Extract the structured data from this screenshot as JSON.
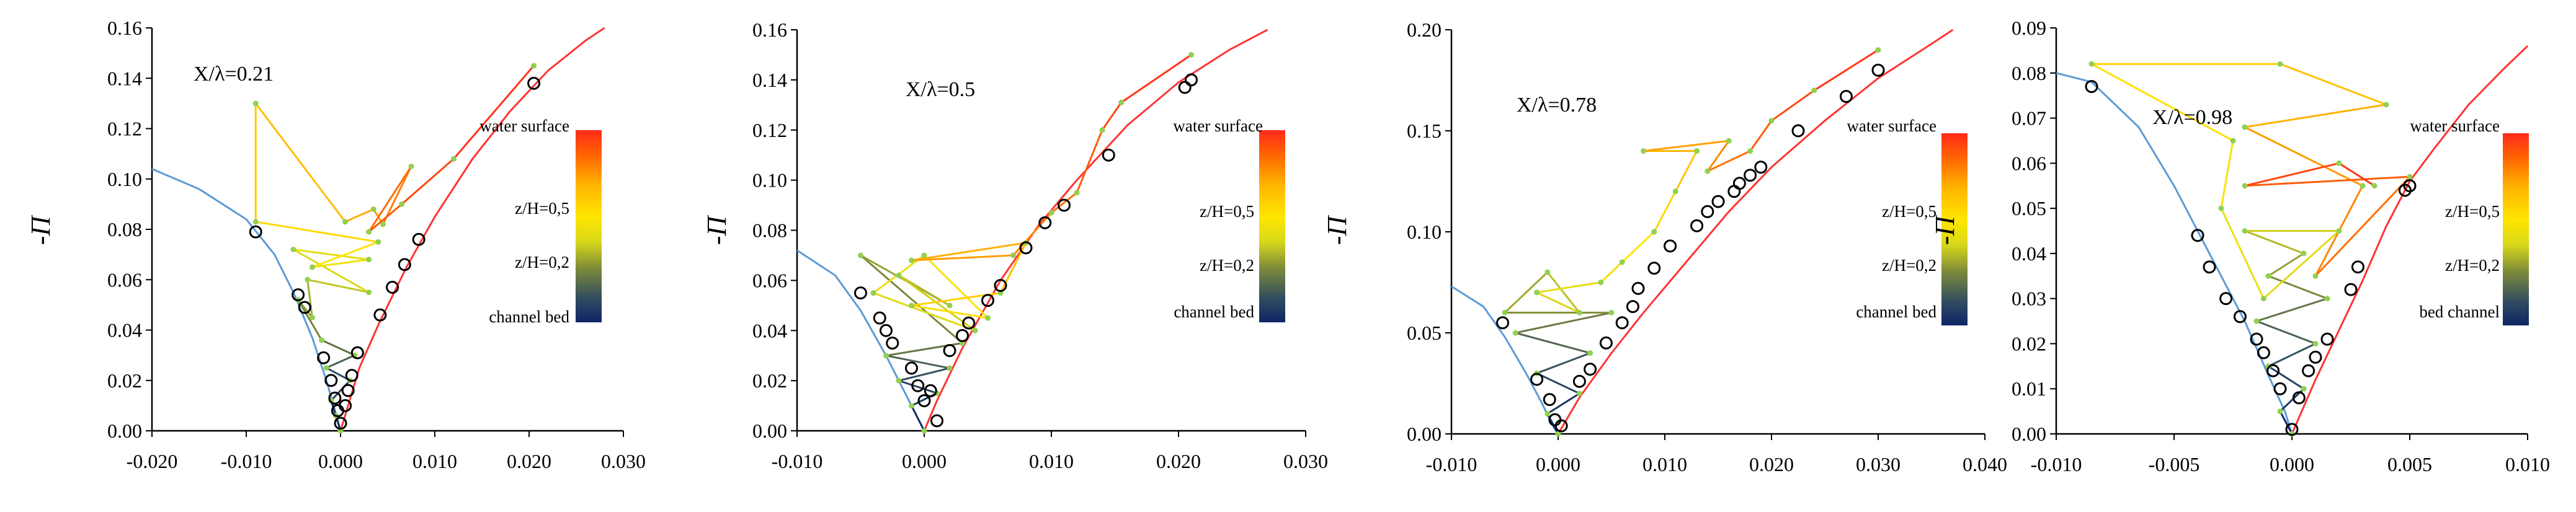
{
  "colorbar": {
    "colors": [
      "#0f2466",
      "#2f4b60",
      "#7d8a3a",
      "#d8d81a",
      "#ffe600",
      "#ffb300",
      "#ff6a00",
      "#ff2a1a"
    ],
    "z02_label": "z/H=0,2",
    "z05_label": "z/H=0,5",
    "surface_label": "water surface"
  },
  "styles": {
    "left_curve_color": "#5b9bd5",
    "right_curve_color": "#ff3333",
    "marker_color": "#000000",
    "point_color": "#92d050",
    "axis_color": "#000000"
  },
  "chart_data": [
    {
      "type": "scatter",
      "title": "X/λ=0.21",
      "ylabel": "-Π",
      "bottom_label": "channel bed",
      "xlim": [
        -0.02,
        0.03
      ],
      "ylim": [
        0,
        0.16
      ],
      "xticks": [
        "-0.020",
        "-0.010",
        "0.000",
        "0.010",
        "0.020",
        "0.030"
      ],
      "yticks": [
        "0.00",
        "0.02",
        "0.04",
        "0.06",
        "0.08",
        "0.10",
        "0.12",
        "0.14",
        "0.16"
      ],
      "left_curve": [
        [
          -0.02,
          0.104
        ],
        [
          -0.015,
          0.096
        ],
        [
          -0.01,
          0.084
        ],
        [
          -0.007,
          0.07
        ],
        [
          -0.005,
          0.055
        ],
        [
          -0.003,
          0.037
        ],
        [
          -0.0015,
          0.02
        ],
        [
          -0.0005,
          0.007
        ],
        [
          0,
          0
        ]
      ],
      "right_curve": [
        [
          0,
          0
        ],
        [
          0.0008,
          0.01
        ],
        [
          0.002,
          0.025
        ],
        [
          0.004,
          0.042
        ],
        [
          0.007,
          0.065
        ],
        [
          0.01,
          0.085
        ],
        [
          0.014,
          0.108
        ],
        [
          0.018,
          0.127
        ],
        [
          0.022,
          0.143
        ],
        [
          0.026,
          0.155
        ],
        [
          0.028,
          0.16
        ]
      ],
      "markers": [
        [
          -0.009,
          0.079
        ],
        [
          -0.0045,
          0.054
        ],
        [
          -0.0038,
          0.049
        ],
        [
          -0.0018,
          0.029
        ],
        [
          -0.001,
          0.02
        ],
        [
          -0.0006,
          0.013
        ],
        [
          -0.0003,
          0.008
        ],
        [
          0,
          0.003
        ],
        [
          0.0005,
          0.01
        ],
        [
          0.0008,
          0.016
        ],
        [
          0.0012,
          0.022
        ],
        [
          0.0018,
          0.031
        ],
        [
          0.0042,
          0.046
        ],
        [
          0.0055,
          0.057
        ],
        [
          0.0068,
          0.066
        ],
        [
          0.0083,
          0.076
        ],
        [
          0.0205,
          0.138
        ]
      ],
      "profile": [
        [
          0,
          0
        ],
        [
          -0.0005,
          0.006
        ],
        [
          -0.001,
          0.012
        ],
        [
          0.001,
          0.02
        ],
        [
          -0.0015,
          0.025
        ],
        [
          0.0015,
          0.03
        ],
        [
          -0.002,
          0.036
        ],
        [
          -0.0045,
          0.052
        ],
        [
          -0.003,
          0.045
        ],
        [
          -0.0035,
          0.06
        ],
        [
          0.003,
          0.055
        ],
        [
          -0.005,
          0.072
        ],
        [
          0.003,
          0.068
        ],
        [
          -0.003,
          0.065
        ],
        [
          0.004,
          0.075
        ],
        [
          -0.009,
          0.083
        ],
        [
          -0.009,
          0.13
        ],
        [
          0.0005,
          0.083
        ],
        [
          0.0035,
          0.088
        ],
        [
          0.0045,
          0.082
        ],
        [
          0.0075,
          0.105
        ],
        [
          0.003,
          0.079
        ],
        [
          0.0065,
          0.09
        ],
        [
          0.012,
          0.108
        ],
        [
          0.0205,
          0.145
        ]
      ]
    },
    {
      "type": "scatter",
      "title": "X/λ=0.5",
      "ylabel": "-Π",
      "bottom_label": "channel bed",
      "xlim": [
        -0.01,
        0.03
      ],
      "ylim": [
        0,
        0.16
      ],
      "xticks": [
        "-0.010",
        "0.000",
        "0.010",
        "0.020",
        "0.030"
      ],
      "yticks": [
        "0.00",
        "0.02",
        "0.04",
        "0.06",
        "0.08",
        "0.10",
        "0.12",
        "0.14",
        "0.16"
      ],
      "left_curve": [
        [
          -0.01,
          0.072
        ],
        [
          -0.007,
          0.062
        ],
        [
          -0.005,
          0.048
        ],
        [
          -0.003,
          0.03
        ],
        [
          -0.0015,
          0.015
        ],
        [
          -0.0005,
          0.005
        ],
        [
          0,
          0
        ]
      ],
      "right_curve": [
        [
          0,
          0
        ],
        [
          0.001,
          0.012
        ],
        [
          0.003,
          0.033
        ],
        [
          0.006,
          0.06
        ],
        [
          0.009,
          0.082
        ],
        [
          0.012,
          0.1
        ],
        [
          0.016,
          0.122
        ],
        [
          0.02,
          0.139
        ],
        [
          0.024,
          0.152
        ],
        [
          0.027,
          0.16
        ]
      ],
      "markers": [
        [
          -0.005,
          0.055
        ],
        [
          -0.0035,
          0.045
        ],
        [
          -0.003,
          0.04
        ],
        [
          -0.0025,
          0.035
        ],
        [
          -0.001,
          0.025
        ],
        [
          -0.0005,
          0.018
        ],
        [
          0,
          0.012
        ],
        [
          0.0005,
          0.016
        ],
        [
          0.001,
          0.004
        ],
        [
          0.002,
          0.032
        ],
        [
          0.003,
          0.038
        ],
        [
          0.0035,
          0.043
        ],
        [
          0.005,
          0.052
        ],
        [
          0.006,
          0.058
        ],
        [
          0.008,
          0.073
        ],
        [
          0.0095,
          0.083
        ],
        [
          0.011,
          0.09
        ],
        [
          0.0145,
          0.11
        ],
        [
          0.0205,
          0.137
        ],
        [
          0.021,
          0.14
        ]
      ],
      "profile": [
        [
          0,
          0
        ],
        [
          -0.001,
          0.01
        ],
        [
          0.001,
          0.015
        ],
        [
          -0.002,
          0.02
        ],
        [
          0.002,
          0.025
        ],
        [
          -0.003,
          0.03
        ],
        [
          0.003,
          0.035
        ],
        [
          -0.005,
          0.07
        ],
        [
          0.002,
          0.05
        ],
        [
          -0.002,
          0.062
        ],
        [
          0.004,
          0.04
        ],
        [
          -0.004,
          0.055
        ],
        [
          0,
          0.07
        ],
        [
          0.005,
          0.045
        ],
        [
          -0.001,
          0.05
        ],
        [
          0.006,
          0.055
        ],
        [
          0.008,
          0.075
        ],
        [
          -0.001,
          0.068
        ],
        [
          0.007,
          0.07
        ],
        [
          0.01,
          0.087
        ],
        [
          0.012,
          0.095
        ],
        [
          0.014,
          0.12
        ],
        [
          0.0155,
          0.131
        ],
        [
          0.021,
          0.15
        ]
      ]
    },
    {
      "type": "scatter",
      "title": "X/λ=0.78",
      "ylabel": "-Π",
      "bottom_label": "channel bed",
      "xlim": [
        -0.01,
        0.04
      ],
      "ylim": [
        0,
        0.2
      ],
      "xticks": [
        "-0.010",
        "0.000",
        "0.010",
        "0.020",
        "0.030",
        "0.040"
      ],
      "yticks": [
        "0.00",
        "0.05",
        "0.10",
        "0.15",
        "0.20"
      ],
      "left_curve": [
        [
          -0.01,
          0.073
        ],
        [
          -0.007,
          0.063
        ],
        [
          -0.005,
          0.048
        ],
        [
          -0.003,
          0.03
        ],
        [
          -0.0015,
          0.015
        ],
        [
          -0.0005,
          0.004
        ],
        [
          0,
          0
        ]
      ],
      "right_curve": [
        [
          0,
          0
        ],
        [
          0.002,
          0.018
        ],
        [
          0.005,
          0.04
        ],
        [
          0.008,
          0.06
        ],
        [
          0.012,
          0.085
        ],
        [
          0.016,
          0.11
        ],
        [
          0.02,
          0.132
        ],
        [
          0.025,
          0.155
        ],
        [
          0.03,
          0.176
        ],
        [
          0.035,
          0.193
        ],
        [
          0.037,
          0.2
        ]
      ],
      "markers": [
        [
          -0.0052,
          0.055
        ],
        [
          -0.002,
          0.027
        ],
        [
          -0.0008,
          0.017
        ],
        [
          -0.0003,
          0.007
        ],
        [
          0.0003,
          0.004
        ],
        [
          0.002,
          0.026
        ],
        [
          0.003,
          0.032
        ],
        [
          0.0045,
          0.045
        ],
        [
          0.006,
          0.055
        ],
        [
          0.007,
          0.063
        ],
        [
          0.0075,
          0.072
        ],
        [
          0.009,
          0.082
        ],
        [
          0.0105,
          0.093
        ],
        [
          0.013,
          0.103
        ],
        [
          0.014,
          0.11
        ],
        [
          0.015,
          0.115
        ],
        [
          0.0165,
          0.12
        ],
        [
          0.017,
          0.124
        ],
        [
          0.018,
          0.128
        ],
        [
          0.019,
          0.132
        ],
        [
          0.0225,
          0.15
        ],
        [
          0.027,
          0.167
        ],
        [
          0.03,
          0.18
        ]
      ],
      "profile": [
        [
          0,
          0
        ],
        [
          -0.001,
          0.01
        ],
        [
          0.002,
          0.02
        ],
        [
          -0.002,
          0.03
        ],
        [
          0.003,
          0.04
        ],
        [
          -0.004,
          0.05
        ],
        [
          0.005,
          0.06
        ],
        [
          -0.005,
          0.06
        ],
        [
          -0.001,
          0.08
        ],
        [
          0.002,
          0.06
        ],
        [
          -0.002,
          0.07
        ],
        [
          0.004,
          0.075
        ],
        [
          0.006,
          0.085
        ],
        [
          0.009,
          0.1
        ],
        [
          0.011,
          0.12
        ],
        [
          0.013,
          0.14
        ],
        [
          0.008,
          0.14
        ],
        [
          0.016,
          0.145
        ],
        [
          0.014,
          0.13
        ],
        [
          0.018,
          0.14
        ],
        [
          0.02,
          0.155
        ],
        [
          0.024,
          0.17
        ],
        [
          0.03,
          0.19
        ]
      ]
    },
    {
      "type": "scatter",
      "title": "X/λ=0.98",
      "ylabel": "-Π",
      "bottom_label": "bed channel",
      "xlim": [
        -0.01,
        0.01
      ],
      "ylim": [
        0,
        0.09
      ],
      "xticks": [
        "-0.010",
        "-0.005",
        "0.000",
        "0.005",
        "0.010"
      ],
      "yticks": [
        "0.00",
        "0.01",
        "0.02",
        "0.03",
        "0.04",
        "0.05",
        "0.06",
        "0.07",
        "0.08",
        "0.09"
      ],
      "left_curve": [
        [
          -0.01,
          0.08
        ],
        [
          -0.0085,
          0.078
        ],
        [
          -0.0065,
          0.068
        ],
        [
          -0.005,
          0.055
        ],
        [
          -0.0035,
          0.04
        ],
        [
          -0.002,
          0.025
        ],
        [
          -0.001,
          0.013
        ],
        [
          -0.0003,
          0.005
        ],
        [
          0,
          0
        ]
      ],
      "right_curve": [
        [
          0,
          0
        ],
        [
          0.0005,
          0.006
        ],
        [
          0.001,
          0.012
        ],
        [
          0.002,
          0.023
        ],
        [
          0.003,
          0.034
        ],
        [
          0.004,
          0.046
        ],
        [
          0.005,
          0.056
        ],
        [
          0.006,
          0.063
        ],
        [
          0.0075,
          0.073
        ],
        [
          0.009,
          0.081
        ],
        [
          0.01,
          0.086
        ]
      ],
      "markers": [
        [
          -0.0085,
          0.077
        ],
        [
          -0.004,
          0.044
        ],
        [
          -0.0035,
          0.037
        ],
        [
          -0.0028,
          0.03
        ],
        [
          -0.0022,
          0.026
        ],
        [
          -0.0015,
          0.021
        ],
        [
          -0.0012,
          0.018
        ],
        [
          -0.0008,
          0.014
        ],
        [
          -0.0005,
          0.01
        ],
        [
          0,
          0.001
        ],
        [
          0.0003,
          0.008
        ],
        [
          0.0007,
          0.014
        ],
        [
          0.001,
          0.017
        ],
        [
          0.0015,
          0.021
        ],
        [
          0.0025,
          0.032
        ],
        [
          0.0028,
          0.037
        ],
        [
          0.0048,
          0.054
        ],
        [
          0.005,
          0.055
        ]
      ],
      "profile": [
        [
          0,
          0
        ],
        [
          -0.0005,
          0.005
        ],
        [
          0.0005,
          0.01
        ],
        [
          -0.001,
          0.015
        ],
        [
          0.001,
          0.02
        ],
        [
          -0.0015,
          0.025
        ],
        [
          0.0015,
          0.03
        ],
        [
          -0.001,
          0.035
        ],
        [
          0.0005,
          0.04
        ],
        [
          -0.002,
          0.045
        ],
        [
          0.002,
          0.045
        ],
        [
          -0.0012,
          0.03
        ],
        [
          -0.003,
          0.05
        ],
        [
          -0.0025,
          0.065
        ],
        [
          -0.0085,
          0.082
        ],
        [
          -0.0005,
          0.082
        ],
        [
          0.004,
          0.073
        ],
        [
          -0.002,
          0.068
        ],
        [
          0.003,
          0.055
        ],
        [
          0.001,
          0.035
        ],
        [
          0.005,
          0.057
        ],
        [
          -0.002,
          0.055
        ],
        [
          0.002,
          0.06
        ],
        [
          0.0035,
          0.055
        ]
      ]
    }
  ]
}
